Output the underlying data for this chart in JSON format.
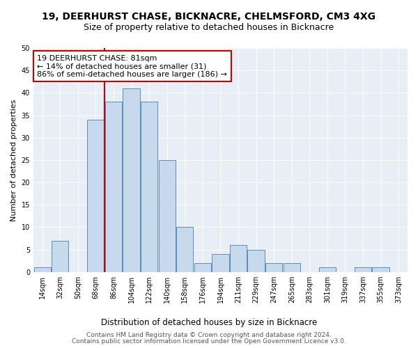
{
  "title1": "19, DEERHURST CHASE, BICKNACRE, CHELMSFORD, CM3 4XG",
  "title2": "Size of property relative to detached houses in Bicknacre",
  "xlabel": "Distribution of detached houses by size in Bicknacre",
  "ylabel": "Number of detached properties",
  "categories": [
    "14sqm",
    "32sqm",
    "50sqm",
    "68sqm",
    "86sqm",
    "104sqm",
    "122sqm",
    "140sqm",
    "158sqm",
    "176sqm",
    "194sqm",
    "211sqm",
    "229sqm",
    "247sqm",
    "265sqm",
    "283sqm",
    "301sqm",
    "319sqm",
    "337sqm",
    "355sqm",
    "373sqm"
  ],
  "values": [
    1,
    7,
    0,
    34,
    38,
    41,
    38,
    25,
    10,
    2,
    4,
    6,
    5,
    2,
    2,
    0,
    1,
    0,
    1,
    1,
    0
  ],
  "bar_color": "#c6d9ed",
  "bar_edge_color": "#5b8db8",
  "bar_width": 0.95,
  "vline_color": "#cc0000",
  "vline_bin": 4,
  "annotation_line1": "19 DEERHURST CHASE: 81sqm",
  "annotation_line2": "← 14% of detached houses are smaller (31)",
  "annotation_line3": "86% of semi-detached houses are larger (186) →",
  "annotation_box_color": "#cc0000",
  "ylim": [
    0,
    50
  ],
  "yticks": [
    0,
    5,
    10,
    15,
    20,
    25,
    30,
    35,
    40,
    45,
    50
  ],
  "background_color": "#e8eef5",
  "footer1": "Contains HM Land Registry data © Crown copyright and database right 2024.",
  "footer2": "Contains public sector information licensed under the Open Government Licence v3.0.",
  "title1_fontsize": 10,
  "title2_fontsize": 9,
  "xlabel_fontsize": 8.5,
  "ylabel_fontsize": 8,
  "annotation_fontsize": 8,
  "tick_fontsize": 7,
  "footer_fontsize": 6.5
}
